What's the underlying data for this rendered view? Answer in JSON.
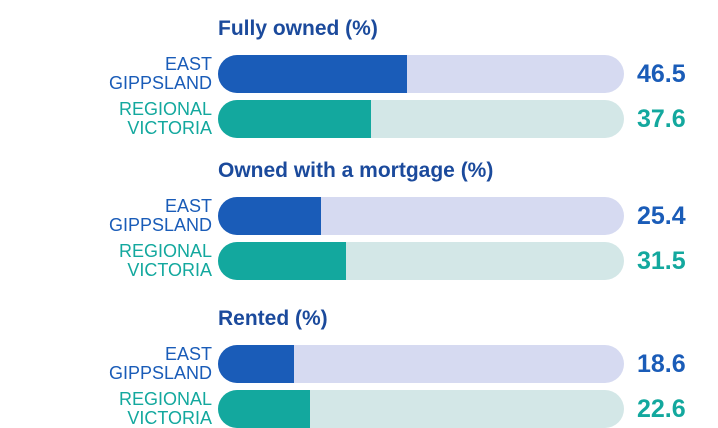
{
  "chart_data": [
    {
      "type": "bar",
      "title": "Fully owned (%)",
      "categories": [
        "EAST GIPPSLAND",
        "REGIONAL VICTORIA"
      ],
      "values": [
        46.5,
        37.6
      ],
      "colors": [
        "#1a5cb8",
        "#13a89e"
      ],
      "track_colors": [
        "#d6daf1",
        "#d3e7e7"
      ],
      "xlim": [
        0,
        100
      ]
    },
    {
      "type": "bar",
      "title": "Owned with a mortgage (%)",
      "categories": [
        "EAST GIPPSLAND",
        "REGIONAL VICTORIA"
      ],
      "values": [
        25.4,
        31.5
      ],
      "colors": [
        "#1a5cb8",
        "#13a89e"
      ],
      "track_colors": [
        "#d6daf1",
        "#d3e7e7"
      ],
      "xlim": [
        0,
        100
      ]
    },
    {
      "type": "bar",
      "title": "Rented (%)",
      "categories": [
        "EAST GIPPSLAND",
        "REGIONAL VICTORIA"
      ],
      "values": [
        18.6,
        22.6
      ],
      "colors": [
        "#1a5cb8",
        "#13a89e"
      ],
      "track_colors": [
        "#d6daf1",
        "#d3e7e7"
      ],
      "xlim": [
        0,
        100
      ]
    }
  ]
}
